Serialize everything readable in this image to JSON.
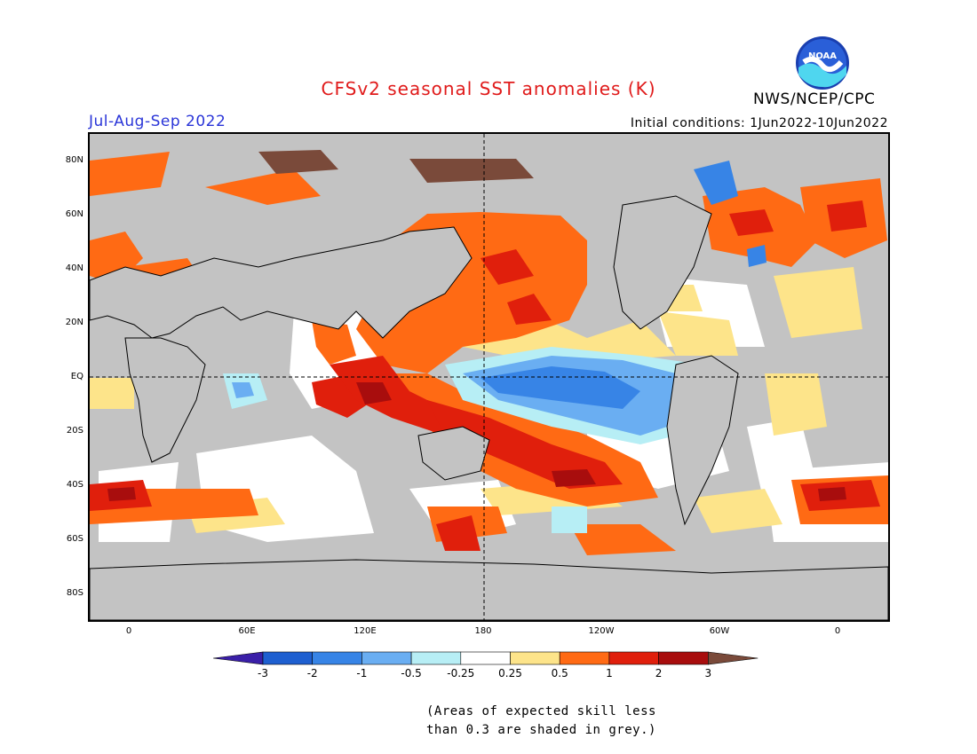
{
  "title": "CFSv2 seasonal SST anomalies (K)",
  "season": "Jul-Aug-Sep 2022",
  "initial_conditions": "Initial conditions: 1Jun2022-10Jun2022",
  "agency": "NWS/NCEP/CPC",
  "logo_text": "NOAA",
  "lat_labels": [
    "80N",
    "60N",
    "40N",
    "20N",
    "EQ",
    "20S",
    "40S",
    "60S",
    "80S"
  ],
  "lon_labels": [
    "0",
    "60E",
    "120E",
    "180",
    "120W",
    "60W",
    "0"
  ],
  "colorbar": {
    "ticks": [
      "-3",
      "-2",
      "-1",
      "-0.5",
      "-0.25",
      "0.25",
      "0.5",
      "1",
      "2",
      "3"
    ],
    "colors": [
      "#3a1fa8",
      "#1e5fd0",
      "#3784e6",
      "#6aaef2",
      "#b7eef5",
      "#ffffff",
      "#fde48a",
      "#ff6a14",
      "#e01f0c",
      "#a80d0d",
      "#7a4a3a"
    ]
  },
  "note_lines": [
    "(Areas of expected skill less",
    "than 0.3 are shaded in grey.)"
  ]
}
